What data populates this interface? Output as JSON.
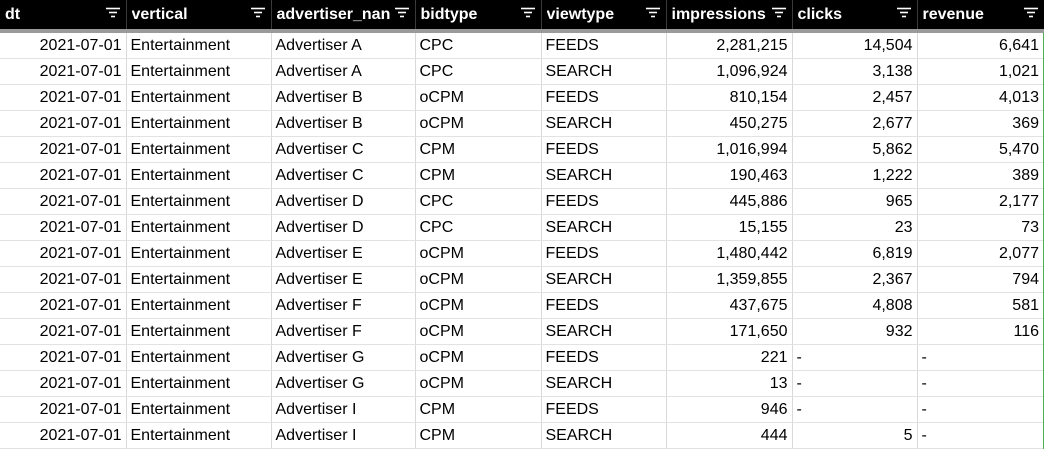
{
  "columns": [
    "dt",
    "vertical",
    "advertiser_nan",
    "bidtype",
    "viewtype",
    "impressions",
    "clicks",
    "revenue"
  ],
  "rows": [
    [
      "2021-07-01",
      "Entertainment",
      "Advertiser A",
      "CPC",
      "FEEDS",
      "2,281,215",
      "14,504",
      "6,641"
    ],
    [
      "2021-07-01",
      "Entertainment",
      "Advertiser A",
      "CPC",
      "SEARCH",
      "1,096,924",
      "3,138",
      "1,021"
    ],
    [
      "2021-07-01",
      "Entertainment",
      "Advertiser B",
      "oCPM",
      "FEEDS",
      "810,154",
      "2,457",
      "4,013"
    ],
    [
      "2021-07-01",
      "Entertainment",
      "Advertiser B",
      "oCPM",
      "SEARCH",
      "450,275",
      "2,677",
      "369"
    ],
    [
      "2021-07-01",
      "Entertainment",
      "Advertiser C",
      "CPM",
      "FEEDS",
      "1,016,994",
      "5,862",
      "5,470"
    ],
    [
      "2021-07-01",
      "Entertainment",
      "Advertiser C",
      "CPM",
      "SEARCH",
      "190,463",
      "1,222",
      "389"
    ],
    [
      "2021-07-01",
      "Entertainment",
      "Advertiser D",
      "CPC",
      "FEEDS",
      "445,886",
      "965",
      "2,177"
    ],
    [
      "2021-07-01",
      "Entertainment",
      "Advertiser D",
      "CPC",
      "SEARCH",
      "15,155",
      "23",
      "73"
    ],
    [
      "2021-07-01",
      "Entertainment",
      "Advertiser E",
      "oCPM",
      "FEEDS",
      "1,480,442",
      "6,819",
      "2,077"
    ],
    [
      "2021-07-01",
      "Entertainment",
      "Advertiser E",
      "oCPM",
      "SEARCH",
      "1,359,855",
      "2,367",
      "794"
    ],
    [
      "2021-07-01",
      "Entertainment",
      "Advertiser F",
      "oCPM",
      "FEEDS",
      "437,675",
      "4,808",
      "581"
    ],
    [
      "2021-07-01",
      "Entertainment",
      "Advertiser F",
      "oCPM",
      "SEARCH",
      "171,650",
      "932",
      "116"
    ],
    [
      "2021-07-01",
      "Entertainment",
      "Advertiser G",
      "oCPM",
      "FEEDS",
      "221",
      "-",
      "-"
    ],
    [
      "2021-07-01",
      "Entertainment",
      "Advertiser G",
      "oCPM",
      "SEARCH",
      "13",
      "-",
      "-"
    ],
    [
      "2021-07-01",
      "Entertainment",
      "Advertiser I",
      "CPM",
      "FEEDS",
      "946",
      "-",
      "-"
    ],
    [
      "2021-07-01",
      "Entertainment",
      "Advertiser I",
      "CPM",
      "SEARCH",
      "444",
      "5",
      "-"
    ]
  ],
  "icons": {
    "header_filter": "filter-icon"
  },
  "colors": {
    "header_bg": "#000000",
    "header_text": "#ffffff",
    "selection_border": "#4caf50"
  }
}
